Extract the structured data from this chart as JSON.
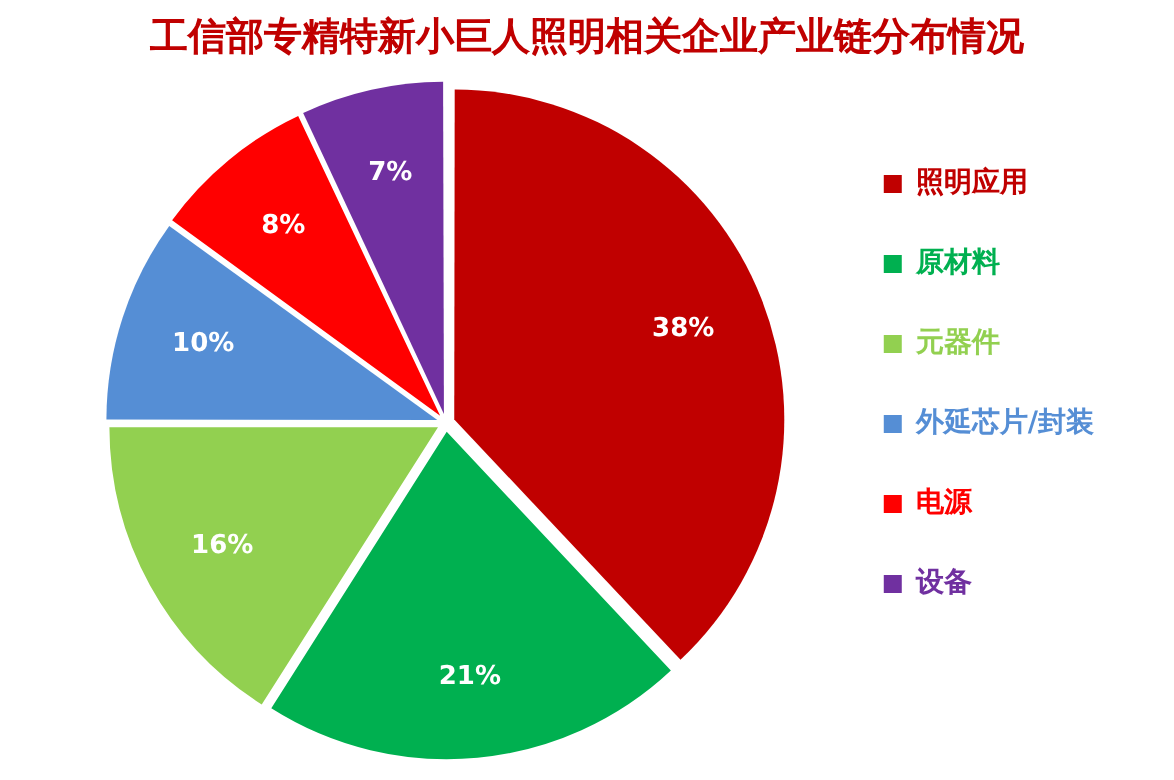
{
  "chart_data": {
    "type": "pie",
    "title": "工信部专精特新小巨人照明相关企业产业链分布情况",
    "categories": [
      "照明应用",
      "原材料",
      "元器件",
      "外延芯片/封装",
      "电源",
      "设备"
    ],
    "values": [
      38,
      21,
      16,
      10,
      8,
      7
    ],
    "colors": [
      "#c00000",
      "#00b050",
      "#92d050",
      "#558ed5",
      "#ff0000",
      "#7030a0"
    ],
    "value_labels": [
      "38%",
      "21%",
      "16%",
      "10%",
      "8%",
      "7%"
    ],
    "legend": "right"
  }
}
